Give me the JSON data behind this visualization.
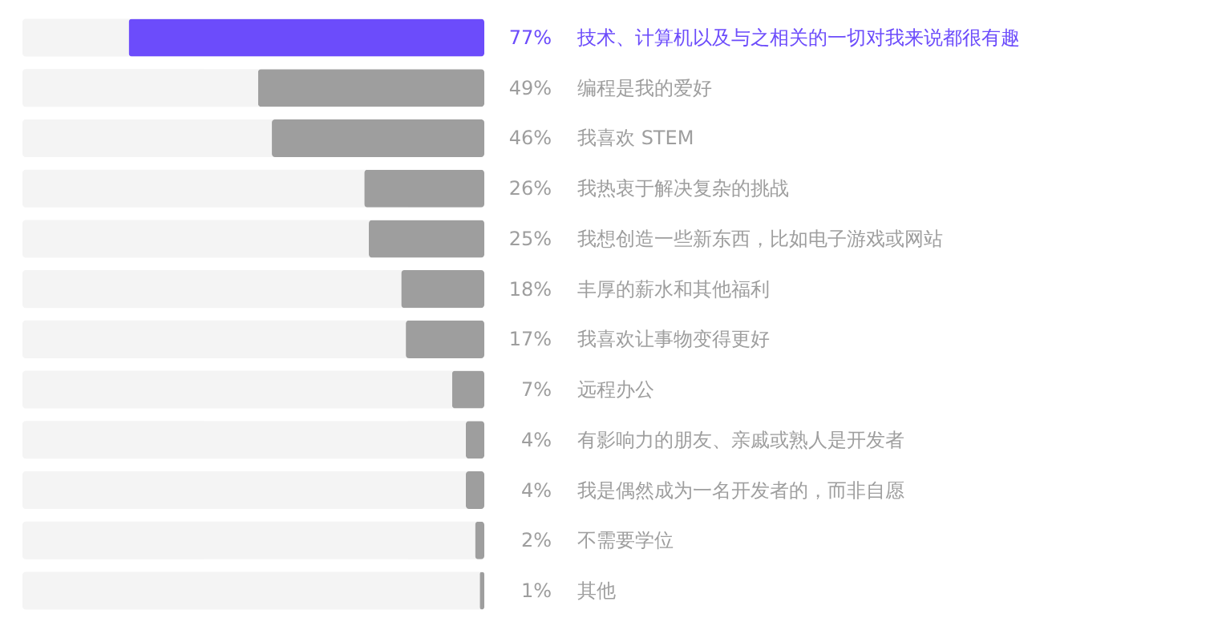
{
  "chart_data": {
    "type": "bar",
    "orientation": "horizontal",
    "categories": [
      "技术、计算机以及与之相关的一切对我来说都很有趣",
      "编程是我的爱好",
      "我喜欢 STEM",
      "我热衷于解决复杂的挑战",
      "我想创造一些新东西，比如电子游戏或网站",
      "丰厚的薪水和其他福利",
      "我喜欢让事物变得更好",
      "远程办公",
      "有影响力的朋友、亲戚或熟人是开发者",
      "我是偶然成为一名开发者的，而非自愿",
      "不需要学位",
      "其他"
    ],
    "values": [
      77,
      49,
      46,
      26,
      25,
      18,
      17,
      7,
      4,
      4,
      2,
      1
    ],
    "value_labels": [
      "77%",
      "49%",
      "46%",
      "26%",
      "25%",
      "18%",
      "17%",
      "7%",
      "4%",
      "4%",
      "2%",
      "1%"
    ],
    "colors": [
      "#6c4cfb",
      "#9e9e9e",
      "#9e9e9e",
      "#9e9e9e",
      "#9e9e9e",
      "#9e9e9e",
      "#9e9e9e",
      "#9e9e9e",
      "#9e9e9e",
      "#9e9e9e",
      "#9e9e9e",
      "#9e9e9e"
    ],
    "xlim": [
      100,
      0
    ],
    "bands": [
      {
        "axis": "x",
        "from": 0,
        "to": 100,
        "color": "#f4f4f4"
      }
    ],
    "tick_labels": false
  }
}
